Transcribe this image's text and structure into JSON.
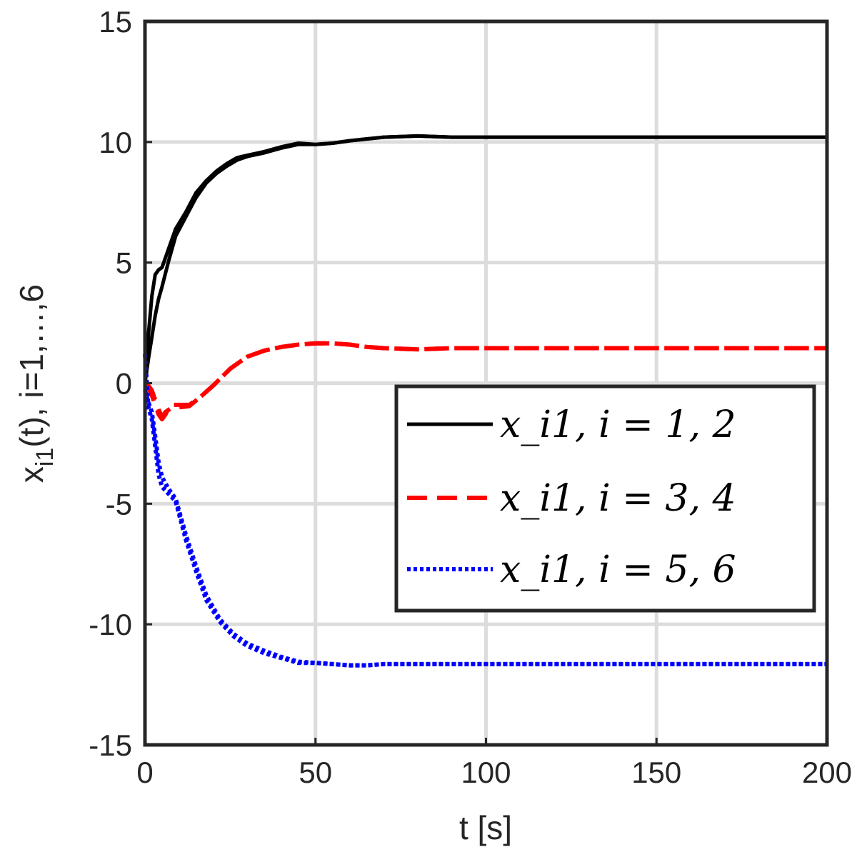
{
  "chart_data": {
    "type": "line",
    "xlabel": "t [s]",
    "ylabel": "x_i1(t), i=1,...,6",
    "ylabel_parts": {
      "main": "x",
      "sub": "i1",
      "rest": "(t), i=1,…,6"
    },
    "xlim": [
      0,
      200
    ],
    "ylim": [
      -15,
      15
    ],
    "xticks": [
      "0",
      "50",
      "100",
      "150",
      "200"
    ],
    "yticks": [
      "15",
      "10",
      "5",
      "0",
      "-5",
      "-10",
      "-15"
    ],
    "grid": true,
    "legend_position": "right",
    "series": [
      {
        "name": "x_i1, i = 1,2",
        "legend_label": "x_i1,  i = 1, 2",
        "color": "#000000",
        "style": "solid",
        "curves": [
          {
            "x": [
              0,
              1,
              2,
              3,
              4,
              5,
              7,
              9,
              12,
              15,
              18,
              21,
              24,
              27,
              30,
              35,
              40,
              45,
              50,
              55,
              60,
              70,
              80,
              90,
              100,
              120,
              150,
              200
            ],
            "y": [
              0,
              2.0,
              3.6,
              4.5,
              4.7,
              4.8,
              5.6,
              6.4,
              7.1,
              7.9,
              8.4,
              8.8,
              9.1,
              9.35,
              9.45,
              9.6,
              9.8,
              9.95,
              9.9,
              9.95,
              10.05,
              10.2,
              10.25,
              10.2,
              10.2,
              10.2,
              10.2,
              10.2
            ]
          },
          {
            "x": [
              0,
              1,
              2,
              3,
              4,
              5,
              7,
              9,
              12,
              15,
              18,
              21,
              24,
              27,
              30,
              35,
              40,
              45,
              50,
              55,
              60,
              70,
              80,
              90,
              100,
              120,
              150,
              200
            ],
            "y": [
              0,
              1.0,
              1.9,
              2.8,
              3.5,
              4.0,
              5.1,
              6.1,
              6.9,
              7.7,
              8.3,
              8.7,
              9.0,
              9.25,
              9.4,
              9.55,
              9.75,
              9.9,
              9.9,
              9.95,
              10.05,
              10.2,
              10.25,
              10.2,
              10.2,
              10.2,
              10.2,
              10.2
            ]
          }
        ]
      },
      {
        "name": "x_i1, i = 3,4",
        "legend_label": "x_i1,  i = 3, 4",
        "color": "#ff0000",
        "style": "dashed",
        "curves": [
          {
            "x": [
              0,
              1,
              2,
              3,
              4,
              5,
              6,
              7,
              8,
              10,
              13,
              16,
              20,
              25,
              30,
              35,
              40,
              45,
              50,
              55,
              60,
              65,
              70,
              80,
              90,
              100,
              150,
              200
            ],
            "y": [
              0,
              -0.2,
              -0.5,
              -0.9,
              -1.3,
              -1.5,
              -1.3,
              -1.0,
              -0.9,
              -0.9,
              -0.9,
              -0.6,
              -0.1,
              0.6,
              1.1,
              1.35,
              1.5,
              1.6,
              1.65,
              1.65,
              1.6,
              1.5,
              1.45,
              1.4,
              1.45,
              1.45,
              1.45,
              1.45
            ]
          },
          {
            "x": [
              0,
              1,
              2,
              3,
              4,
              5,
              6,
              8,
              10,
              13,
              16,
              20,
              25,
              30,
              35,
              40,
              45,
              50,
              55,
              60,
              65,
              70,
              80,
              90,
              100,
              150,
              200
            ],
            "y": [
              0,
              -0.1,
              -0.3,
              -0.7,
              -1.1,
              -1.4,
              -1.2,
              -1.0,
              -1.0,
              -0.95,
              -0.6,
              -0.1,
              0.6,
              1.1,
              1.35,
              1.5,
              1.6,
              1.65,
              1.65,
              1.6,
              1.5,
              1.45,
              1.4,
              1.45,
              1.45,
              1.45,
              1.45
            ]
          }
        ]
      },
      {
        "name": "x_i1, i = 5,6",
        "legend_label": "x_i1,  i = 5, 6",
        "color": "#0000ff",
        "style": "dotted",
        "curves": [
          {
            "x": [
              0,
              1,
              2,
              3,
              4,
              5,
              7,
              9,
              12,
              15,
              18,
              22,
              26,
              30,
              35,
              40,
              45,
              50,
              55,
              60,
              65,
              70,
              80,
              100,
              150,
              200
            ],
            "y": [
              1.2,
              -1.0,
              -1.5,
              -2.6,
              -3.8,
              -4.3,
              -4.6,
              -4.9,
              -6.5,
              -7.8,
              -9.0,
              -9.9,
              -10.5,
              -10.9,
              -11.2,
              -11.4,
              -11.6,
              -11.6,
              -11.65,
              -11.7,
              -11.7,
              -11.65,
              -11.65,
              -11.65,
              -11.65,
              -11.65
            ]
          },
          {
            "x": [
              0,
              1,
              2,
              3,
              4,
              5,
              7,
              9,
              12,
              15,
              18,
              22,
              26,
              30,
              35,
              40,
              45,
              50,
              55,
              60,
              65,
              70,
              80,
              100,
              150,
              200
            ],
            "y": [
              -0.3,
              -0.8,
              -1.2,
              -2.2,
              -3.3,
              -3.9,
              -4.4,
              -4.8,
              -6.3,
              -7.6,
              -8.8,
              -9.8,
              -10.4,
              -10.8,
              -11.1,
              -11.35,
              -11.55,
              -11.6,
              -11.65,
              -11.7,
              -11.7,
              -11.65,
              -11.65,
              -11.65,
              -11.65,
              -11.65
            ]
          }
        ]
      }
    ]
  }
}
